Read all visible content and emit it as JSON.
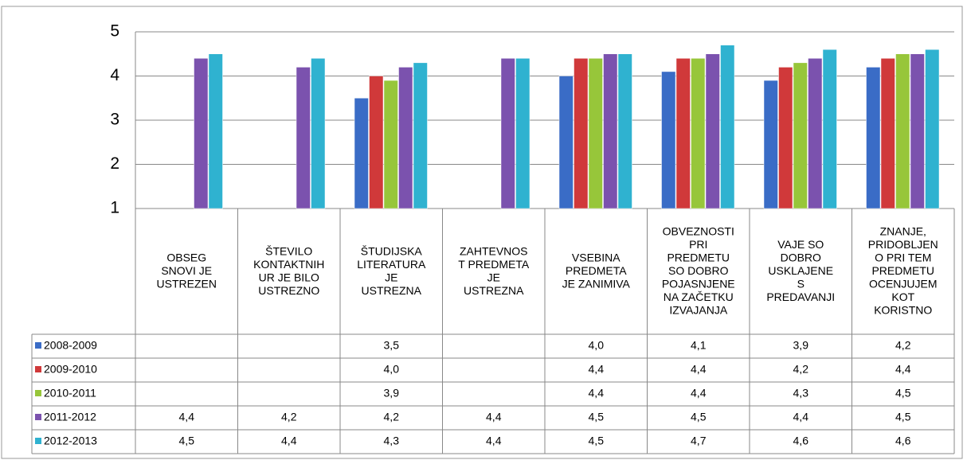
{
  "chart_data": {
    "type": "bar",
    "categories": [
      "OBSEG\nSNOVI JE\nUSTREZEN",
      "ŠTEVILO\nKONTAKTNIH\nUR JE BILO\nUSTREZNO",
      "ŠTUDIJSKA\nLITERATURA\nJE\nUSTREZNA",
      "ZAHTEVNOS\nT PREDMETA\nJE\nUSTREZNA",
      "VSEBINA\nPREDMETA\nJE ZANIMIVA",
      "OBVEZNOSTI\nPRI\nPREDMETU\nSO DOBRO\nPOJASNJENE\nNA ZAČETKU\nIZVAJANJA",
      "VAJE SO\nDOBRO\nUSKLAJENE\nS\nPREDAVANJI",
      "ZNANJE,\nPRIDOBLJEN\nO PRI TEM\nPREDMETU\nOCENJUJEM\nKOT\nKORISTNO"
    ],
    "series": [
      {
        "name": "2008-2009",
        "color": "#3a6cc6",
        "values": [
          null,
          null,
          3.5,
          null,
          4.0,
          4.1,
          3.9,
          4.2
        ],
        "value_labels": [
          null,
          null,
          "3,5",
          null,
          "4,0",
          "4,1",
          "3,9",
          "4,2"
        ]
      },
      {
        "name": "2009-2010",
        "color": "#d0393a",
        "values": [
          null,
          null,
          4.0,
          null,
          4.4,
          4.4,
          4.2,
          4.4
        ],
        "value_labels": [
          null,
          null,
          "4,0",
          null,
          "4,4",
          "4,4",
          "4,2",
          "4,4"
        ]
      },
      {
        "name": "2010-2011",
        "color": "#97c63a",
        "values": [
          null,
          null,
          3.9,
          null,
          4.4,
          4.4,
          4.3,
          4.5
        ],
        "value_labels": [
          null,
          null,
          "3,9",
          null,
          "4,4",
          "4,4",
          "4,3",
          "4,5"
        ]
      },
      {
        "name": "2011-2012",
        "color": "#7b52ae",
        "values": [
          4.4,
          4.2,
          4.2,
          4.4,
          4.5,
          4.5,
          4.4,
          4.5
        ],
        "value_labels": [
          "4,4",
          "4,2",
          "4,2",
          "4,4",
          "4,5",
          "4,5",
          "4,4",
          "4,5"
        ]
      },
      {
        "name": "2012-2013",
        "color": "#2fb2d0",
        "values": [
          4.5,
          4.4,
          4.3,
          4.4,
          4.5,
          4.7,
          4.6,
          4.6
        ],
        "value_labels": [
          "4,5",
          "4,4",
          "4,3",
          "4,4",
          "4,5",
          "4,7",
          "4,6",
          "4,6"
        ]
      }
    ],
    "ylim": [
      1,
      5
    ],
    "yticks": [
      1,
      2,
      3,
      4,
      5
    ],
    "grid": true
  }
}
